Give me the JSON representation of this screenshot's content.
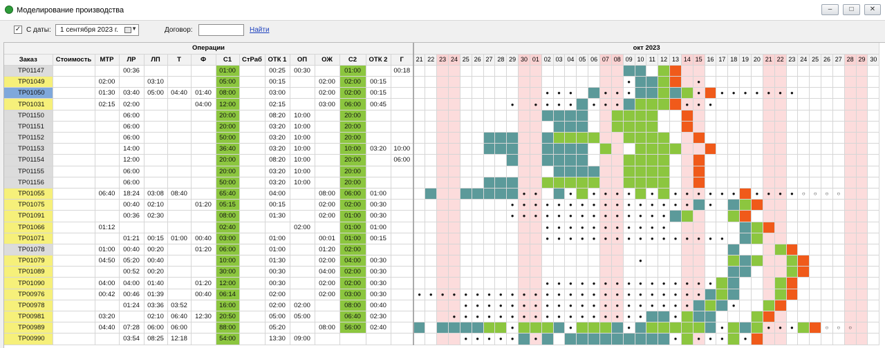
{
  "window": {
    "title": "Моделирование производства"
  },
  "toolbar": {
    "from_date_label": "С даты:",
    "from_date_value": "1 сентября 2023 г.",
    "contract_label": "Договор:",
    "contract_value": "",
    "find_label": "Найти"
  },
  "table": {
    "operations_group": "Операции",
    "month_label": "окт 2023",
    "columns": [
      "Заказ",
      "Стоимость",
      "МТР",
      "ЛР",
      "ЛП",
      "Т",
      "Ф",
      "С1",
      "СтРаб",
      "ОТК 1",
      "ОП",
      "ОЖ",
      "С2",
      "ОТК 2",
      "Г"
    ],
    "days": [
      "21",
      "22",
      "23",
      "24",
      "25",
      "26",
      "27",
      "28",
      "29",
      "30",
      "01",
      "02",
      "03",
      "04",
      "05",
      "06",
      "07",
      "08",
      "09",
      "10",
      "11",
      "12",
      "13",
      "14",
      "15",
      "16",
      "17",
      "18",
      "19",
      "20",
      "21",
      "22",
      "23",
      "24",
      "25",
      "26",
      "27",
      "28",
      "29",
      "30"
    ],
    "weekend_idx": [
      2,
      3,
      9,
      10,
      16,
      17,
      23,
      24,
      30,
      31,
      37,
      38
    ],
    "rows": [
      {
        "order": "ТР01147",
        "hl": "g",
        "cost": "",
        "mtr": "",
        "lr": "00:36",
        "lp": "",
        "t": "",
        "f": "",
        "c1": "01:00",
        "strab": "",
        "otk1": "00:25",
        "op": "00:30",
        "oj": "",
        "c2": "01:00",
        "otk2": "",
        "g": "00:18",
        "cal": "..................tt gr..."
      },
      {
        "order": "ТР01049",
        "hl": "y",
        "cost": "",
        "mtr": "02:00",
        "lr": "",
        "lp": "03:10",
        "t": "",
        "f": "",
        "c1": "05:00",
        "strab": "",
        "otk1": "00:15",
        "op": "",
        "oj": "02:00",
        "c2": "02:00",
        "otk2": "00:15",
        "g": "",
        "cal": "..................dttgr.d..."
      },
      {
        "order": "ТР01050",
        "hl": "b",
        "cost": "",
        "mtr": "01:30",
        "lr": "03:40",
        "lp": "05:00",
        "t": "04:40",
        "f": "01:40",
        "c1": "08:00",
        "strab": "",
        "otk1": "03:00",
        "op": "",
        "oj": "02:00",
        "c2": "02:00",
        "otk2": "00:15",
        "g": "",
        "cal": "...........ddd.tdddttgtgdrddddddd..."
      },
      {
        "order": "ТР01031",
        "hl": "y",
        "cost": "",
        "mtr": "02:15",
        "lr": "02:00",
        "lp": "",
        "t": "",
        "f": "04:00",
        "c1": "12:00",
        "strab": "",
        "otk1": "02:15",
        "op": "",
        "oj": "03:00",
        "c2": "06:00",
        "otk2": "00:45",
        "g": "",
        "cal": "........d.ddddtdddtgggrddd..."
      },
      {
        "order": "ТР01150",
        "hl": "g",
        "cost": "",
        "mtr": "",
        "lr": "06:00",
        "lp": "",
        "t": "",
        "f": "",
        "c1": "20:00",
        "strab": "",
        "otk1": "08:20",
        "op": "10:00",
        "oj": "",
        "c2": "20:00",
        "otk2": "",
        "g": "",
        "cal": "...........tttt..gggg..r..."
      },
      {
        "order": "ТР01151",
        "hl": "g",
        "cost": "",
        "mtr": "",
        "lr": "06:00",
        "lp": "",
        "t": "",
        "f": "",
        "c1": "20:00",
        "strab": "",
        "otk1": "03:20",
        "op": "10:00",
        "oj": "",
        "c2": "20:00",
        "otk2": "",
        "g": "",
        "cal": "............ttt..gggg..r..."
      },
      {
        "order": "ТР01152",
        "hl": "g",
        "cost": "",
        "mtr": "",
        "lr": "06:00",
        "lp": "",
        "t": "",
        "f": "",
        "c1": "50:00",
        "strab": "",
        "otk1": "03:20",
        "op": "10:00",
        "oj": "",
        "c2": "20:00",
        "otk2": "",
        "g": "",
        "cal": "......ttt..tgggg..gggg..r..."
      },
      {
        "order": "ТР01153",
        "hl": "g",
        "cost": "",
        "mtr": "",
        "lr": "14:00",
        "lp": "",
        "t": "",
        "f": "",
        "c1": "36:40",
        "strab": "",
        "otk1": "03:20",
        "op": "10:00",
        "oj": "",
        "c2": "10:00",
        "otk2": "03:20",
        "g": "10:00",
        "cal": "......ttt..tttt.g..gggg..r..."
      },
      {
        "order": "ТР01154",
        "hl": "g",
        "cost": "",
        "mtr": "",
        "lr": "12:00",
        "lp": "",
        "t": "",
        "f": "",
        "c1": "20:00",
        "strab": "",
        "otk1": "08:20",
        "op": "10:00",
        "oj": "",
        "c2": "20:00",
        "otk2": "",
        "g": "06:00",
        "cal": "........t..tttt...gggg..r..."
      },
      {
        "order": "ТР01155",
        "hl": "g",
        "cost": "",
        "mtr": "",
        "lr": "06:00",
        "lp": "",
        "t": "",
        "f": "",
        "c1": "20:00",
        "strab": "",
        "otk1": "03:20",
        "op": "10:00",
        "oj": "",
        "c2": "20:00",
        "otk2": "",
        "g": "",
        "cal": "............tttt..gggg..r..."
      },
      {
        "order": "ТР01156",
        "hl": "g",
        "cost": "",
        "mtr": "",
        "lr": "06:00",
        "lp": "",
        "t": "",
        "f": "",
        "c1": "50:00",
        "strab": "",
        "otk1": "03:20",
        "op": "10:00",
        "oj": "",
        "c2": "20:00",
        "otk2": "",
        "g": "",
        "cal": "......ttt..ggggg..gggg..r..."
      },
      {
        "order": "ТР01055",
        "hl": "y",
        "cost": "",
        "mtr": "06:40",
        "lr": "18:24",
        "lp": "03:08",
        "t": "08:40",
        "f": "",
        "c1": "65:40",
        "strab": "",
        "otk1": "04:00",
        "op": "",
        "oj": "08:00",
        "c2": "06:00",
        "otk2": "01:00",
        "g": "",
        "cal": ".t..tttttdd.tdgddddgdgddddddrddddoooo"
      },
      {
        "order": "ТР01075",
        "hl": "y",
        "cost": "",
        "mtr": "",
        "lr": "00:40",
        "lp": "02:10",
        "t": "",
        "f": "01:20",
        "c1": "05:15",
        "strab": "",
        "otk1": "00:15",
        "op": "",
        "oj": "02:00",
        "c2": "02:00",
        "otk2": "00:30",
        "g": "",
        "cal": "........ddddddddddddddddtd.tgr..."
      },
      {
        "order": "ТР01091",
        "hl": "y",
        "cost": "",
        "mtr": "",
        "lr": "00:36",
        "lp": "02:30",
        "t": "",
        "f": "",
        "c1": "08:00",
        "strab": "",
        "otk1": "01:30",
        "op": "",
        "oj": "02:00",
        "c2": "01:00",
        "otk2": "00:30",
        "g": "",
        "cal": "........ddddddddddddddtg...gr..."
      },
      {
        "order": "ТР01066",
        "hl": "y",
        "cost": "",
        "mtr": "01:12",
        "lr": "",
        "lp": "",
        "t": "",
        "f": "",
        "c1": "02:40",
        "strab": "",
        "otk1": "",
        "op": "02:00",
        "oj": "",
        "c2": "01:00",
        "otk2": "01:00",
        "g": "",
        "cal": "...........ddddddddddd......tgr..."
      },
      {
        "order": "ТР01071",
        "hl": "y",
        "cost": "",
        "mtr": "",
        "lr": "01:21",
        "lp": "00:15",
        "t": "01:00",
        "f": "00:40",
        "c1": "03:00",
        "strab": "",
        "otk1": "01:00",
        "op": "",
        "oj": "00:01",
        "c2": "01:00",
        "otk2": "00:15",
        "g": "",
        "cal": "...........dddddddddddddddd.tg..."
      },
      {
        "order": "ТР01078",
        "hl": "g",
        "cost": "",
        "mtr": "01:00",
        "lr": "00:40",
        "lp": "00:20",
        "t": "",
        "f": "01:20",
        "c1": "06:00",
        "strab": "",
        "otk1": "01:00",
        "op": "",
        "oj": "01:20",
        "c2": "02:00",
        "otk2": "",
        "g": "",
        "cal": "...........................t...gr..."
      },
      {
        "order": "ТР01079",
        "hl": "y",
        "cost": "",
        "mtr": "04:50",
        "lr": "05:20",
        "lp": "00:40",
        "t": "",
        "f": "",
        "c1": "10:00",
        "strab": "",
        "otk1": "01:30",
        "op": "",
        "oj": "02:00",
        "c2": "04:00",
        "otk2": "00:30",
        "g": "",
        "cal": "...................d.......gtg..gr..."
      },
      {
        "order": "ТР01089",
        "hl": "y",
        "cost": "",
        "mtr": "",
        "lr": "00:52",
        "lp": "00:20",
        "t": "",
        "f": "",
        "c1": "30:00",
        "strab": "",
        "otk1": "00:30",
        "op": "",
        "oj": "04:00",
        "c2": "02:00",
        "otk2": "00:30",
        "g": "",
        "cal": "...........................tt...gr..."
      },
      {
        "order": "ТР01090",
        "hl": "y",
        "cost": "",
        "mtr": "04:00",
        "lr": "04:00",
        "lp": "01:40",
        "t": "",
        "f": "01:20",
        "c1": "12:00",
        "strab": "",
        "otk1": "00:30",
        "op": "",
        "oj": "02:00",
        "c2": "02:00",
        "otk2": "00:30",
        "g": "",
        "cal": "...........dddddddddddddddgt...gr..."
      },
      {
        "order": "ТР00976",
        "hl": "y",
        "cost": "",
        "mtr": "00:42",
        "lr": "00:46",
        "lp": "01:39",
        "t": "",
        "f": "00:40",
        "c1": "06:14",
        "strab": "",
        "otk1": "02:00",
        "op": "",
        "oj": "02:00",
        "c2": "03:00",
        "otk2": "00:30",
        "g": "",
        "cal": "dddddddddddddddddddddddddtgt...gr..."
      },
      {
        "order": "ТР00978",
        "hl": "y",
        "cost": "",
        "mtr": "",
        "lr": "01:24",
        "lp": "03:36",
        "t": "03:52",
        "f": "",
        "c1": "16:00",
        "strab": "",
        "otk1": "02:00",
        "op": "02:00",
        "oj": "",
        "c2": "08:00",
        "otk2": "00:40",
        "g": "",
        "cal": "....ddddddddddddddddddddtgtd..gr..."
      },
      {
        "order": "ТР00981",
        "hl": "y",
        "cost": "",
        "mtr": "03:20",
        "lr": "",
        "lp": "02:10",
        "t": "06:40",
        "f": "12:30",
        "c1": "20:50",
        "strab": "",
        "otk1": "05:00",
        "op": "05:00",
        "oj": "",
        "c2": "06:40",
        "otk2": "02:30",
        "g": "",
        "cal": "...dddddddddddddddddttdgtt...gr..."
      },
      {
        "order": "ТР00989",
        "hl": "y",
        "cost": "",
        "mtr": "04:40",
        "lr": "07:28",
        "lp": "06:00",
        "t": "06:00",
        "f": "",
        "c1": "88:00",
        "strab": "",
        "otk1": "05:20",
        "op": "",
        "oj": "08:00",
        "c2": "56:00",
        "otk2": "02:40",
        "g": "",
        "cal": "t.ttttggdgggtdgggtdtgggggtdgtgdddgrooo"
      },
      {
        "order": "ТР00990",
        "hl": "y",
        "cost": "",
        "mtr": "",
        "lr": "03:54",
        "lp": "08:25",
        "t": "12:18",
        "f": "",
        "c1": "54:00",
        "strab": "",
        "otk1": "13:30",
        "op": "09:00",
        "oj": "",
        "c2": "",
        "otk2": "",
        "g": "",
        "cal": "....dddddtdt.tttttttttdgdddgdr..."
      }
    ]
  }
}
